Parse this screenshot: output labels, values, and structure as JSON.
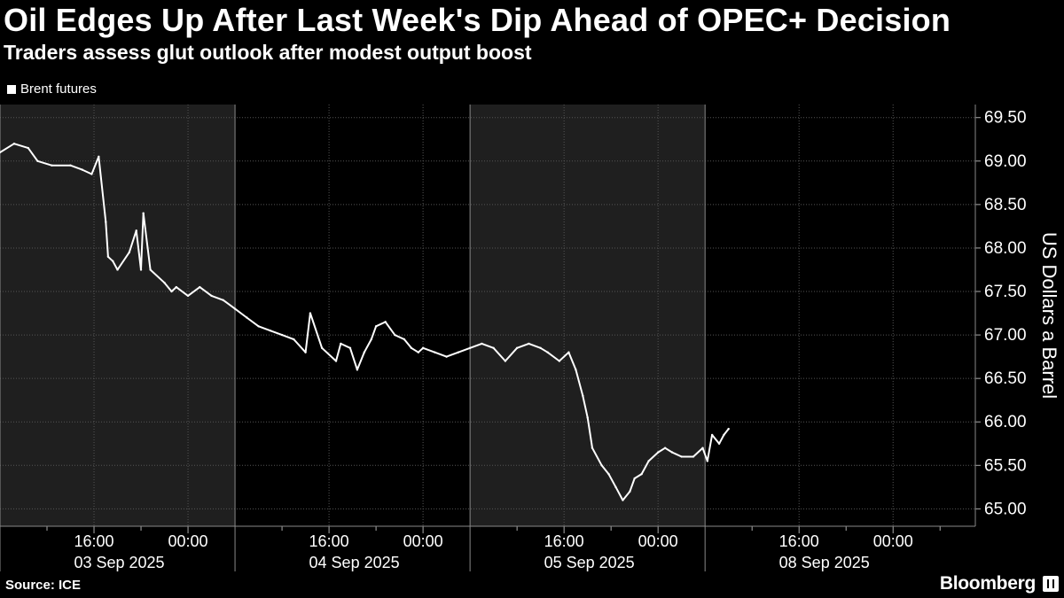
{
  "chart_data": {
    "type": "line",
    "title": "Oil Edges Up After Last Week's Dip Ahead of OPEC+ Decision",
    "subtitle": "Traders assess glut outlook after modest output boost",
    "ylabel": "US Dollars a Barrel",
    "ylim": [
      64.8,
      69.65
    ],
    "y_ticks": [
      "65.00",
      "65.50",
      "66.00",
      "66.50",
      "67.00",
      "67.50",
      "68.00",
      "68.50",
      "69.00",
      "69.50"
    ],
    "y_tick_values": [
      65.0,
      65.5,
      66.0,
      66.5,
      67.0,
      67.5,
      68.0,
      68.5,
      69.0,
      69.5
    ],
    "x_ticks": [
      {
        "x": 4.0,
        "label": "16:00"
      },
      {
        "x": 8.0,
        "label": "00:00"
      },
      {
        "x": 14.0,
        "label": "16:00"
      },
      {
        "x": 18.0,
        "label": "00:00"
      },
      {
        "x": 24.0,
        "label": "16:00"
      },
      {
        "x": 28.0,
        "label": "00:00"
      },
      {
        "x": 34.0,
        "label": "16:00"
      },
      {
        "x": 38.0,
        "label": "00:00"
      }
    ],
    "minor_ticks": [
      2.0,
      6.0,
      12.0,
      16.0,
      22.0,
      26.0,
      32.0,
      36.0,
      40.0
    ],
    "date_labels": [
      {
        "x": 5.0,
        "label": "03 Sep 2025"
      },
      {
        "x": 15.0,
        "label": "04 Sep 2025"
      },
      {
        "x": 25.0,
        "label": "05 Sep 2025"
      },
      {
        "x": 35.0,
        "label": "08 Sep 2025"
      }
    ],
    "day_boundaries": [
      0,
      10,
      20,
      30
    ],
    "shaded_days": [
      [
        0,
        10
      ],
      [
        20,
        30
      ]
    ],
    "xlim": [
      0,
      41.5
    ],
    "series": [
      {
        "name": "Brent futures",
        "color": "#ffffff",
        "x": [
          0.0,
          0.6,
          1.2,
          1.6,
          2.2,
          3.0,
          3.5,
          3.9,
          4.2,
          4.5,
          4.6,
          4.8,
          5.0,
          5.5,
          5.8,
          6.0,
          6.1,
          6.4,
          7.0,
          7.3,
          7.5,
          8.0,
          8.5,
          9.0,
          9.5,
          10.0,
          10.5,
          11.0,
          11.5,
          12.0,
          12.5,
          13.0,
          13.2,
          13.7,
          14.3,
          14.5,
          14.9,
          15.2,
          15.5,
          15.8,
          16.0,
          16.4,
          16.8,
          17.2,
          17.5,
          17.8,
          18.0,
          18.5,
          19.0,
          19.5,
          20.0,
          20.5,
          21.0,
          21.5,
          22.0,
          22.5,
          23.0,
          23.3,
          23.8,
          24.2,
          24.5,
          24.8,
          25.0,
          25.2,
          25.6,
          25.9,
          26.2,
          26.5,
          26.8,
          27.0,
          27.3,
          27.6,
          28.0,
          28.3,
          28.6,
          29.0,
          29.5,
          29.9,
          30.1,
          30.3,
          30.6,
          30.8,
          31.0
        ],
        "values": [
          69.1,
          69.2,
          69.15,
          69.0,
          68.95,
          68.95,
          68.9,
          68.85,
          69.05,
          68.3,
          67.9,
          67.85,
          67.75,
          67.95,
          68.2,
          67.75,
          68.4,
          67.75,
          67.6,
          67.5,
          67.55,
          67.45,
          67.55,
          67.45,
          67.4,
          67.3,
          67.2,
          67.1,
          67.05,
          67.0,
          66.95,
          66.8,
          67.25,
          66.85,
          66.7,
          66.9,
          66.85,
          66.6,
          66.8,
          66.95,
          67.1,
          67.15,
          67.0,
          66.95,
          66.85,
          66.8,
          66.85,
          66.8,
          66.75,
          66.8,
          66.85,
          66.9,
          66.85,
          66.7,
          66.85,
          66.9,
          66.85,
          66.8,
          66.7,
          66.8,
          66.6,
          66.3,
          66.05,
          65.7,
          65.5,
          65.4,
          65.25,
          65.1,
          65.2,
          65.35,
          65.4,
          65.55,
          65.65,
          65.7,
          65.65,
          65.6,
          65.6,
          65.7,
          65.55,
          65.85,
          65.75,
          65.85,
          65.92
        ]
      }
    ]
  },
  "legend": {
    "label": "Brent futures",
    "color": "#ffffff"
  },
  "footer": {
    "source": "Source: ICE",
    "brand": "Bloomberg"
  }
}
